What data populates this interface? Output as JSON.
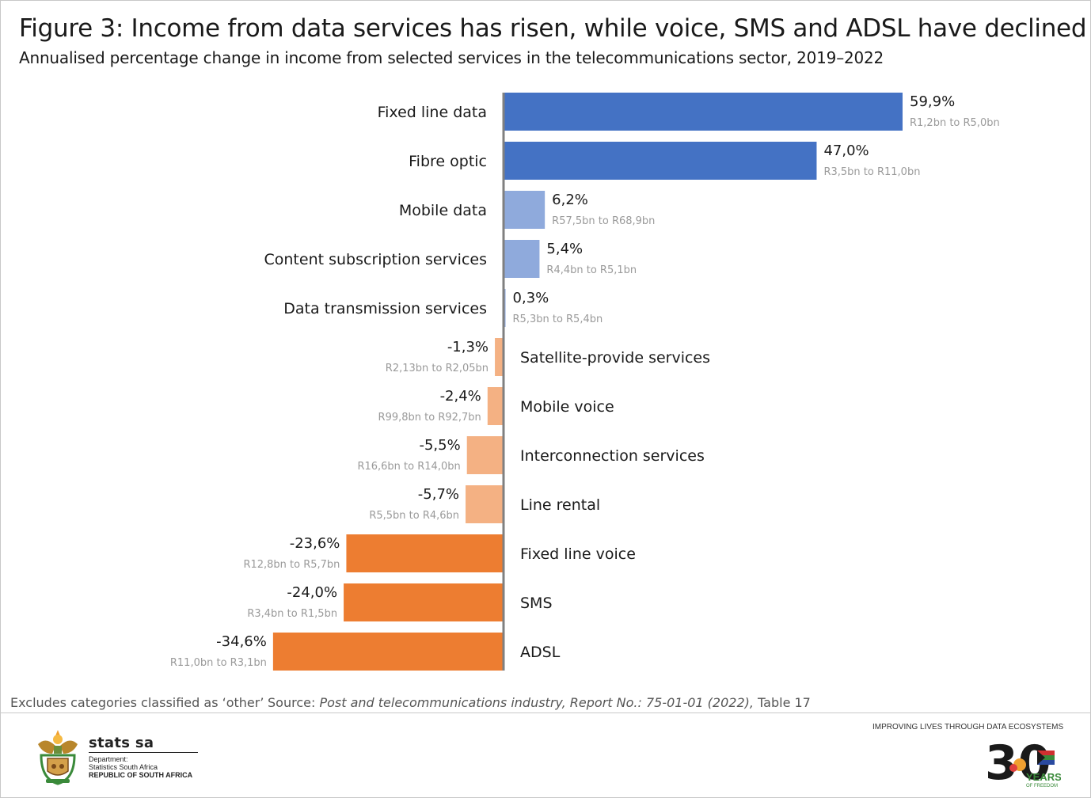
{
  "chart_data": {
    "type": "bar",
    "orientation": "horizontal",
    "title": "Figure 3: Income from data services has risen, while voice, SMS and ADSL have declined",
    "subtitle": "Annualised percentage change in income from selected services in the telecommunications sector, 2019–2022",
    "xlabel": "",
    "ylabel": "",
    "xlim": [
      -34.6,
      59.9
    ],
    "grid": false,
    "legend": "none",
    "categories": [
      "Fixed line data",
      "Fibre optic",
      "Mobile data",
      "Content subscription services",
      "Data transmission services",
      "Satellite-provide services",
      "Mobile voice",
      "Interconnection services",
      "Line rental",
      "Fixed line voice",
      "SMS",
      "ADSL"
    ],
    "values": [
      59.9,
      47.0,
      6.2,
      5.4,
      0.3,
      -1.3,
      -2.4,
      -5.5,
      -5.7,
      -23.6,
      -24.0,
      -34.6
    ],
    "value_labels": [
      "59,9%",
      "47,0%",
      "6,2%",
      "5,4%",
      "0,3%",
      "-1,3%",
      "-2,4%",
      "-5,5%",
      "-5,7%",
      "-23,6%",
      "-24,0%",
      "-34,6%"
    ],
    "annotations": [
      "R1,2bn to R5,0bn",
      "R3,5bn to R11,0bn",
      "R57,5bn to R68,9bn",
      "R4,4bn to R5,1bn",
      "R5,3bn to R5,4bn",
      "R2,13bn to R2,05bn",
      "R99,8bn to R92,7bn",
      "R16,6bn to R14,0bn",
      "R5,5bn to R4,6bn",
      "R12,8bn to R5,7bn",
      "R3,4bn to R1,5bn",
      "R11,0bn to R3,1bn"
    ],
    "colors": {
      "strong_positive": "#4472c4",
      "weak_positive": "#8faadc",
      "weak_negative": "#f4b183",
      "strong_negative": "#ed7d31",
      "axis": "#808080"
    }
  },
  "footer": {
    "note": "Excludes categories classified as ‘other’",
    "source_prefix": "Source: ",
    "source_italic": "Post and telecommunications industry, Report No.: 75-01-01 (2022),",
    "source_suffix": " Table 17"
  },
  "branding": {
    "org_name": "stats sa",
    "dept_line1": "Department:",
    "dept_line2": "Statistics South Africa",
    "dept_line3": "REPUBLIC OF SOUTH AFRICA",
    "tagline": "IMPROVING LIVES THROUGH DATA ECOSYSTEMS",
    "badge_number": "30",
    "badge_years": "YEARS",
    "badge_freedom": "OF FREEDOM"
  }
}
